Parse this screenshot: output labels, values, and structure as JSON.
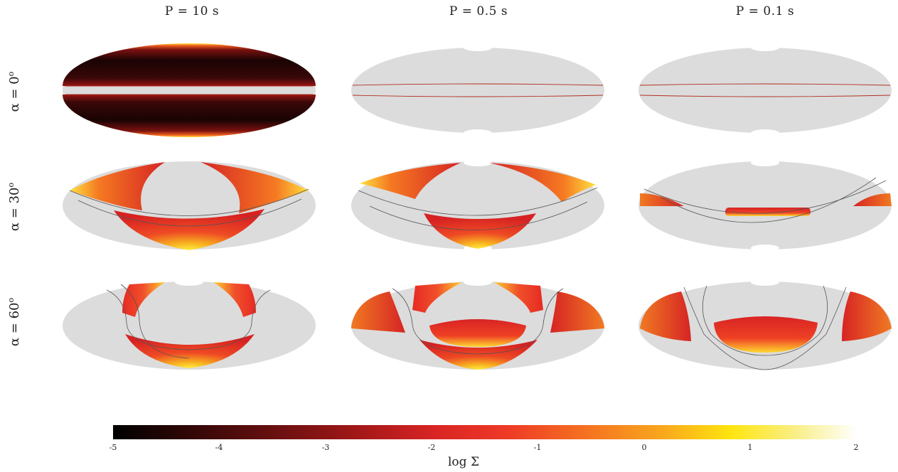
{
  "columns": [
    {
      "label": "P = 10 s"
    },
    {
      "label": "P = 0.5 s"
    },
    {
      "label": "P = 0.1 s"
    }
  ],
  "rows": [
    {
      "label": "α = 0",
      "sup": "o"
    },
    {
      "label": "α = 30",
      "sup": "o"
    },
    {
      "label": "α = 60",
      "sup": "o"
    }
  ],
  "colorbar": {
    "label": "log Σ",
    "ticks": [
      "-5",
      "-4",
      "-3",
      "-2",
      "-1",
      "0",
      "1",
      "2"
    ]
  },
  "colors": {
    "background_map": "#dcdcdc",
    "boundary_line": "#555555",
    "equator_line": "#b03020"
  }
}
